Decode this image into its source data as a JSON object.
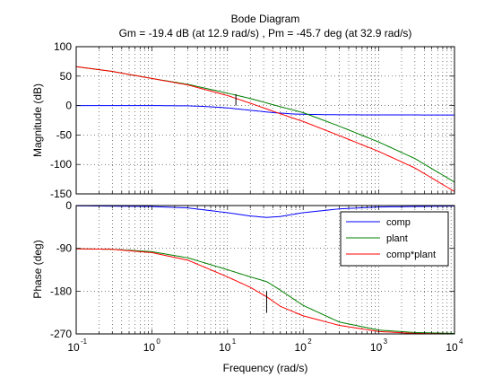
{
  "chart_data": {
    "type": "line",
    "title": "Bode Diagram",
    "subtitle": "Gm = -19.4 dB (at 12.9 rad/s) ,  Pm = -45.7 deg (at 32.9 rad/s)",
    "xlabel": "Frequency  (rad/s)",
    "xscale": "log",
    "xlim": [
      0.1,
      10000
    ],
    "xticks": [
      0.1,
      1,
      10,
      100,
      1000,
      10000
    ],
    "xtick_labels": [
      {
        "base": "10",
        "exp": "-1"
      },
      {
        "base": "10",
        "exp": "0"
      },
      {
        "base": "10",
        "exp": "1"
      },
      {
        "base": "10",
        "exp": "2"
      },
      {
        "base": "10",
        "exp": "3"
      },
      {
        "base": "10",
        "exp": "4"
      }
    ],
    "grid": true,
    "legend_position": "right",
    "magnitude": {
      "ylabel": "Magnitude (dB)",
      "ylim": [
        -150,
        100
      ],
      "yticks": [
        100,
        50,
        0,
        -50,
        -100,
        -150
      ],
      "ytick_labels": [
        "100",
        "50",
        "0",
        "-50",
        "-100",
        "-150"
      ],
      "series": [
        {
          "name": "comp",
          "color": "#0000ff",
          "x": [
            0.1,
            1,
            3,
            5,
            10,
            20,
            40,
            80,
            200,
            1000,
            10000
          ],
          "y": [
            0,
            0,
            -0.5,
            -1.5,
            -4,
            -8,
            -12,
            -14.5,
            -15.5,
            -15.9,
            -16
          ]
        },
        {
          "name": "plant",
          "color": "#008000",
          "x": [
            0.1,
            0.3,
            1,
            3,
            10,
            20,
            50,
            100,
            300,
            1000,
            3000,
            10000
          ],
          "y": [
            66,
            58,
            46,
            36,
            21,
            12,
            -2,
            -12,
            -35,
            -62,
            -90,
            -130
          ]
        },
        {
          "name": "comp*plant",
          "color": "#ff0000",
          "x": [
            0.1,
            0.3,
            1,
            3,
            10,
            20,
            50,
            100,
            300,
            1000,
            3000,
            10000
          ],
          "y": [
            66,
            58,
            46,
            35,
            17,
            4,
            -14,
            -27,
            -51,
            -78,
            -106,
            -146
          ]
        }
      ],
      "marker": {
        "x": 12.9,
        "y0": 0,
        "y1": 19.4
      }
    },
    "phase": {
      "ylabel": "Phase (deg)",
      "ylim": [
        -270,
        0
      ],
      "yticks": [
        0,
        -90,
        -180,
        -270
      ],
      "ytick_labels": [
        "0",
        "-90",
        "-180",
        "-270"
      ],
      "series": [
        {
          "name": "comp",
          "color": "#0000ff",
          "x": [
            0.1,
            1,
            3,
            10,
            20,
            33,
            50,
            100,
            300,
            1000,
            10000
          ],
          "y": [
            -0.5,
            -2,
            -5,
            -15,
            -22,
            -25,
            -23,
            -15,
            -7,
            -3,
            -1
          ]
        },
        {
          "name": "plant",
          "color": "#008000",
          "x": [
            0.1,
            0.3,
            1,
            3,
            10,
            20,
            33,
            50,
            100,
            300,
            1000,
            3000,
            10000
          ],
          "y": [
            -91,
            -92,
            -97,
            -110,
            -135,
            -150,
            -160,
            -178,
            -210,
            -245,
            -262,
            -267,
            -269
          ]
        },
        {
          "name": "comp*plant",
          "color": "#ff0000",
          "x": [
            0.1,
            0.3,
            1,
            3,
            10,
            20,
            33,
            50,
            100,
            300,
            1000,
            3000,
            10000
          ],
          "y": [
            -91,
            -92,
            -99,
            -115,
            -150,
            -172,
            -192,
            -212,
            -232,
            -252,
            -265,
            -269,
            -270
          ]
        }
      ],
      "marker": {
        "x": 32.9,
        "y0": -180,
        "y1": -225.7
      }
    }
  }
}
